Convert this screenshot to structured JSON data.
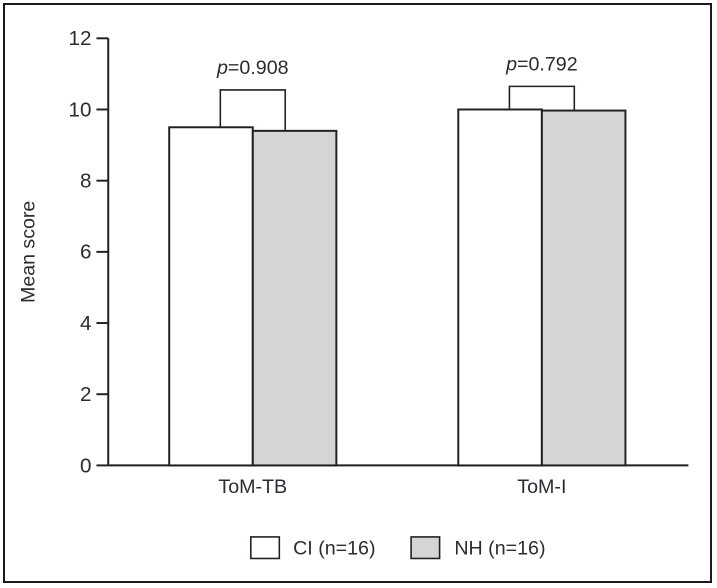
{
  "figure": {
    "background": "#ffffff",
    "border_color": "#1a1a1a",
    "axis_color": "#231f20",
    "text_color": "#2b2b33"
  },
  "chart_data": {
    "type": "bar",
    "title": "",
    "xlabel": "",
    "ylabel": "Mean score",
    "ylim": [
      0,
      12
    ],
    "yticks": [
      0,
      2,
      4,
      6,
      8,
      10,
      12
    ],
    "grid": false,
    "legend_position": "bottom",
    "categories": [
      "ToM-TB",
      "ToM-I"
    ],
    "series": [
      {
        "name": "CI (n=16)",
        "fill": "#ffffff",
        "values": [
          9.5,
          10.0
        ]
      },
      {
        "name": "NH (n=16)",
        "fill": "#d5d5d5",
        "values": [
          9.4,
          9.97
        ]
      }
    ],
    "annotations": [
      {
        "label": "p=0.908",
        "category": "ToM-TB",
        "bracket_top": 10.55
      },
      {
        "label": "p=0.792",
        "category": "ToM-I",
        "bracket_top": 10.65
      }
    ]
  }
}
